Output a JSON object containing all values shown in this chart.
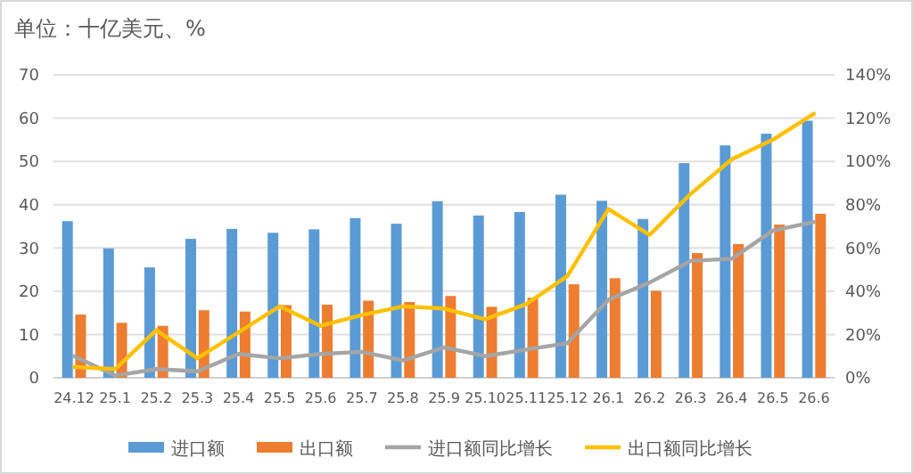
{
  "chart_data": {
    "type": "bar",
    "title": "单位：十亿美元、%",
    "categories": [
      "24.12",
      "25.1",
      "25.2",
      "25.3",
      "25.4",
      "25.5",
      "25.6",
      "25.7",
      "25.8",
      "25.9",
      "25.10",
      "25.11",
      "25.12",
      "26.1",
      "26.2",
      "26.3",
      "26.4",
      "26.5",
      "26.6"
    ],
    "series": [
      {
        "name": "进口额",
        "color": "#5b9bd5",
        "values": [
          36.2,
          29.9,
          25.5,
          32.1,
          34.4,
          33.5,
          34.3,
          36.9,
          35.6,
          40.8,
          37.5,
          38.3,
          42.3,
          40.9,
          36.7,
          49.6,
          53.7,
          56.4,
          59.4
        ]
      },
      {
        "name": "出口额",
        "color": "#ed7d31",
        "values": [
          14.6,
          12.7,
          12.0,
          15.6,
          15.3,
          16.8,
          16.9,
          17.8,
          17.5,
          18.9,
          16.4,
          18.5,
          21.6,
          23.0,
          20.1,
          28.8,
          30.9,
          35.4,
          37.9
        ]
      },
      {
        "name": "进口额同比增长",
        "type": "line",
        "axis": "y2",
        "color": "#a5a5a5",
        "values": [
          10,
          1,
          4,
          3,
          11,
          9,
          11,
          12,
          8,
          14,
          10,
          13,
          16,
          36,
          44,
          54,
          55,
          68,
          72
        ]
      },
      {
        "name": "出口额同比增长",
        "type": "line",
        "axis": "y2",
        "color": "#ffc000",
        "values": [
          5,
          4,
          22,
          9,
          21,
          33,
          24,
          29,
          33,
          32,
          27,
          34,
          47,
          78,
          66,
          85,
          101,
          110,
          122
        ]
      }
    ],
    "ylim": [
      0,
      70
    ],
    "yticks": [
      0,
      10,
      20,
      30,
      40,
      50,
      60,
      70
    ],
    "y2lim": [
      0,
      140
    ],
    "y2ticks": [
      {
        "value": 0,
        "label": "0%"
      },
      {
        "value": 20,
        "label": "20%"
      },
      {
        "value": 40,
        "label": "40%"
      },
      {
        "value": 60,
        "label": "60%"
      },
      {
        "value": 80,
        "label": "80%"
      },
      {
        "value": 100,
        "label": "100%"
      },
      {
        "value": 120,
        "label": "120%"
      },
      {
        "value": 140,
        "label": "140%"
      }
    ],
    "grid": "y",
    "legend": "bottom",
    "line_style": "solid",
    "marker": "none"
  }
}
